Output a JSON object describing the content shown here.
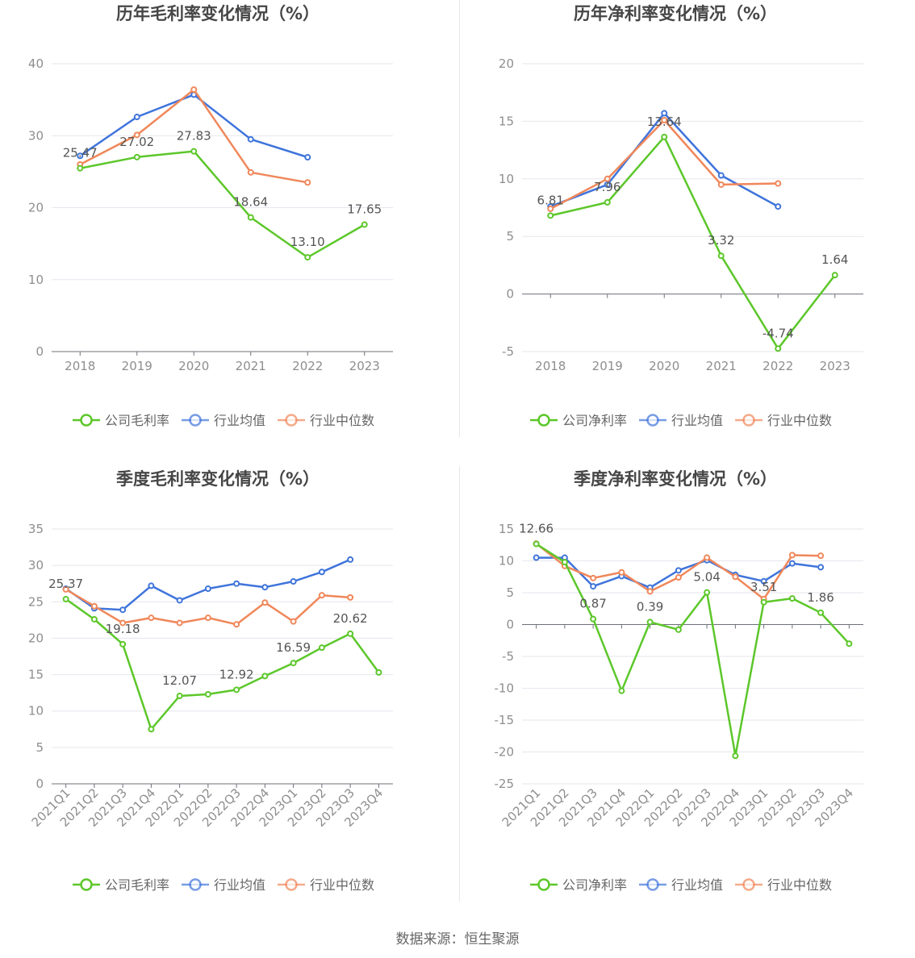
{
  "source_text": "数据来源：恒生聚源",
  "colors": {
    "company": "#5cc72a",
    "avg": "#3f74db",
    "median": "#f0875a",
    "grid": "#e6e6ee",
    "axis": "#6e7079"
  },
  "chart_data": [
    {
      "type": "line",
      "title": "历年毛利率变化情况（%）",
      "x": [
        "2018",
        "2019",
        "2020",
        "2021",
        "2022",
        "2023"
      ],
      "ylim": [
        0,
        40
      ],
      "yticks": [
        0,
        10,
        20,
        30,
        40
      ],
      "series": [
        {
          "name": "公司毛利率",
          "values": [
            25.47,
            27.02,
            27.83,
            18.64,
            13.1,
            17.65
          ],
          "labels": [
            "25.47",
            "27.02",
            "27.83",
            "18.64",
            "13.10",
            "17.65"
          ]
        },
        {
          "name": "行业均值",
          "values": [
            27.2,
            32.6,
            35.7,
            29.5,
            27.0,
            null
          ]
        },
        {
          "name": "行业中位数",
          "values": [
            26.0,
            30.1,
            36.4,
            24.9,
            23.5,
            null
          ]
        }
      ]
    },
    {
      "type": "line",
      "title": "历年净利率变化情况（%）",
      "x": [
        "2018",
        "2019",
        "2020",
        "2021",
        "2022",
        "2023"
      ],
      "ylim": [
        -5,
        20
      ],
      "yticks": [
        -5,
        0,
        5,
        10,
        15,
        20
      ],
      "series": [
        {
          "name": "公司净利率",
          "values": [
            6.81,
            7.96,
            13.64,
            3.32,
            -4.74,
            1.64
          ],
          "labels": [
            "6.81",
            "7.96",
            "13.64",
            "3.32",
            "-4.74",
            "1.64"
          ]
        },
        {
          "name": "行业均值",
          "values": [
            7.6,
            9.5,
            15.7,
            10.3,
            7.6,
            null
          ]
        },
        {
          "name": "行业中位数",
          "values": [
            7.4,
            10.0,
            15.1,
            9.5,
            9.6,
            null
          ]
        }
      ]
    },
    {
      "type": "line",
      "title": "季度毛利率变化情况（%）",
      "x": [
        "2021Q1",
        "2021Q2",
        "2021Q3",
        "2021Q4",
        "2022Q1",
        "2022Q2",
        "2022Q3",
        "2022Q4",
        "2023Q1",
        "2023Q2",
        "2023Q3",
        "2023Q4"
      ],
      "ylim": [
        0,
        35
      ],
      "yticks": [
        0,
        5,
        10,
        15,
        20,
        25,
        30,
        35
      ],
      "series": [
        {
          "name": "公司毛利率",
          "values": [
            25.37,
            22.6,
            19.18,
            7.5,
            12.07,
            12.3,
            12.92,
            14.8,
            16.59,
            18.7,
            20.62,
            15.3
          ],
          "labels": [
            "25.37",
            "",
            "19.18",
            "",
            "12.07",
            "",
            "12.92",
            "",
            "16.59",
            "",
            "20.62",
            ""
          ]
        },
        {
          "name": "行业均值",
          "values": [
            26.8,
            24.1,
            23.9,
            27.2,
            25.2,
            26.8,
            27.5,
            27.0,
            27.8,
            29.1,
            30.8,
            null
          ]
        },
        {
          "name": "行业中位数",
          "values": [
            26.7,
            24.4,
            22.1,
            22.8,
            22.1,
            22.8,
            21.9,
            24.9,
            22.3,
            25.9,
            25.6,
            null
          ]
        }
      ]
    },
    {
      "type": "line",
      "title": "季度净利率变化情况（%）",
      "x": [
        "2021Q1",
        "2021Q2",
        "2021Q3",
        "2021Q4",
        "2022Q1",
        "2022Q2",
        "2022Q3",
        "2022Q4",
        "2023Q1",
        "2023Q2",
        "2023Q3",
        "2023Q4"
      ],
      "ylim": [
        -25,
        15
      ],
      "yticks": [
        -25,
        -20,
        -15,
        -10,
        -5,
        0,
        5,
        10,
        15
      ],
      "series": [
        {
          "name": "公司净利率",
          "values": [
            12.66,
            9.8,
            0.87,
            -10.4,
            0.39,
            -0.8,
            5.04,
            -20.6,
            3.51,
            4.1,
            1.86,
            -3.0
          ],
          "labels": [
            "12.66",
            "",
            "0.87",
            "",
            "0.39",
            "",
            "5.04",
            "",
            "3.51",
            "",
            "1.86",
            ""
          ]
        },
        {
          "name": "行业均值",
          "values": [
            10.5,
            10.5,
            6.0,
            7.6,
            5.8,
            8.5,
            10.1,
            7.8,
            6.8,
            9.6,
            9.0,
            null
          ]
        },
        {
          "name": "行业中位数",
          "values": [
            12.7,
            9.2,
            7.3,
            8.2,
            5.2,
            7.4,
            10.5,
            7.5,
            4.0,
            10.9,
            10.8,
            null
          ]
        }
      ]
    }
  ]
}
